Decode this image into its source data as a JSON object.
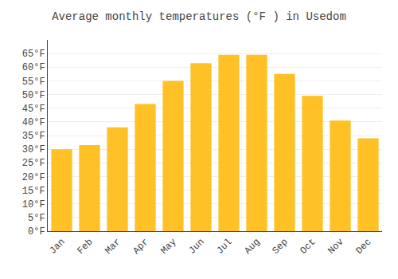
{
  "chart_data": {
    "type": "bar",
    "title": "Average monthly temperatures (°F ) in Usedom",
    "categories": [
      "Jan",
      "Feb",
      "Mar",
      "Apr",
      "May",
      "Jun",
      "Jul",
      "Aug",
      "Sep",
      "Oct",
      "Nov",
      "Dec"
    ],
    "values": [
      30,
      31.5,
      38,
      46.5,
      55,
      61.5,
      64.5,
      64.5,
      57.5,
      49.5,
      40.5,
      34
    ],
    "color": "#FFC125",
    "ylim": [
      0,
      70
    ],
    "yticks": [
      {
        "value": 0,
        "label": "0°F"
      },
      {
        "value": 5,
        "label": "5°F"
      },
      {
        "value": 10,
        "label": "10°F"
      },
      {
        "value": 15,
        "label": "15°F"
      },
      {
        "value": 20,
        "label": "20°F"
      },
      {
        "value": 25,
        "label": "25°F"
      },
      {
        "value": 30,
        "label": "30°F"
      },
      {
        "value": 35,
        "label": "35°F"
      },
      {
        "value": 40,
        "label": "40°F"
      },
      {
        "value": 45,
        "label": "45°F"
      },
      {
        "value": 50,
        "label": "50°F"
      },
      {
        "value": 55,
        "label": "55°F"
      },
      {
        "value": 60,
        "label": "60°F"
      },
      {
        "value": 65,
        "label": "65°F"
      }
    ],
    "grid": true
  }
}
